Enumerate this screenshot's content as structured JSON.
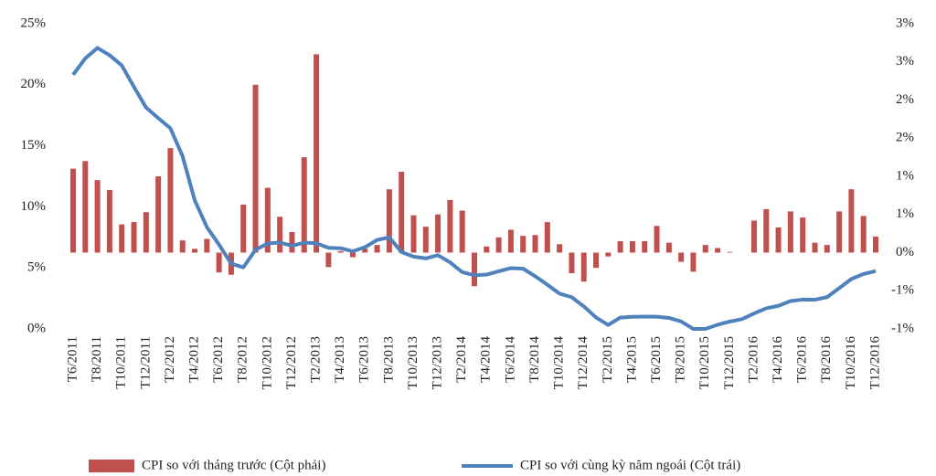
{
  "chart_data": {
    "type": "bar-line",
    "categories": [
      "T6/2011",
      null,
      "T8/2011",
      null,
      "T10/2011",
      null,
      "T12/2011",
      null,
      "T2/2012",
      null,
      "T4/2012",
      null,
      "T6/2012",
      null,
      "T8/2012",
      null,
      "T10/2012",
      null,
      "T12/2012",
      null,
      "T2/2013",
      null,
      "T4/2013",
      null,
      "T6/2013",
      null,
      "T8/2013",
      null,
      "T10/2013",
      null,
      "T12/2013",
      null,
      "T2/2014",
      null,
      "T4/2014",
      null,
      "T6/2014",
      null,
      "T8/2014",
      null,
      "T10/2014",
      null,
      "T12/2014",
      null,
      "T2/2015",
      null,
      "T4/2015",
      null,
      "T6/2015",
      null,
      "T8/2015",
      null,
      "T10/2015",
      null,
      "T12/2015",
      null,
      "T2/2016",
      null,
      "T4/2016",
      null,
      "T6/2016",
      null,
      "T8/2016",
      null,
      "T10/2016",
      null,
      "T12/2016"
    ],
    "series": [
      {
        "name": "CPI so với tháng trước (Cột phải)",
        "type": "bar",
        "axis": "y2",
        "color": "#c0504d",
        "values": [
          1.1,
          1.2,
          0.95,
          0.82,
          0.37,
          0.4,
          0.53,
          1.0,
          1.37,
          0.16,
          0.05,
          0.18,
          -0.26,
          -0.29,
          0.63,
          2.2,
          0.85,
          0.47,
          0.27,
          1.25,
          2.6,
          -0.19,
          0.02,
          -0.06,
          0.05,
          0.1,
          0.83,
          1.06,
          0.49,
          0.34,
          0.5,
          0.69,
          0.55,
          -0.44,
          0.08,
          0.2,
          0.3,
          0.22,
          0.23,
          0.4,
          0.11,
          -0.27,
          -0.38,
          -0.2,
          -0.05,
          0.15,
          0.15,
          0.15,
          0.35,
          0.13,
          -0.12,
          -0.25,
          0.1,
          0.06,
          0.01,
          0.0,
          0.42,
          0.57,
          0.33,
          0.54,
          0.46,
          0.13,
          0.1,
          0.54,
          0.83,
          0.48,
          0.21
        ]
      },
      {
        "name": "CPI so với cùng kỳ năm ngoái (Cột trái)",
        "type": "line",
        "axis": "y",
        "color": "#4f81bd",
        "values": [
          20.82,
          22.16,
          23.02,
          22.42,
          21.59,
          19.83,
          18.13,
          17.27,
          16.44,
          14.15,
          10.54,
          8.34,
          6.9,
          5.35,
          5.04,
          6.48,
          7.0,
          7.08,
          6.81,
          7.07,
          7.02,
          6.64,
          6.61,
          6.36,
          6.69,
          7.29,
          7.5,
          6.3,
          5.92,
          5.78,
          6.04,
          5.45,
          4.65,
          4.39,
          4.45,
          4.72,
          4.98,
          4.94,
          4.31,
          3.62,
          2.89,
          2.6,
          1.84,
          0.94,
          0.32,
          0.93,
          0.99,
          1.01,
          1.0,
          0.9,
          0.61,
          0.0,
          0.0,
          0.34,
          0.6,
          0.8,
          1.27,
          1.69,
          1.89,
          2.28,
          2.4,
          2.39,
          2.6,
          3.34,
          4.09,
          4.5,
          4.74
        ]
      }
    ],
    "ylim": [
      0,
      25
    ],
    "yticks": [
      {
        "value": 0,
        "label": "0%"
      },
      {
        "value": 5,
        "label": "5%"
      },
      {
        "value": 10,
        "label": "10%"
      },
      {
        "value": 15,
        "label": "15%"
      },
      {
        "value": 20,
        "label": "20%"
      },
      {
        "value": 25,
        "label": "25%"
      }
    ],
    "y2lim": [
      -1,
      3
    ],
    "y2ticks": [
      {
        "value": -1,
        "label": "-1%"
      },
      {
        "value": -0.5,
        "label": "-1%"
      },
      {
        "value": 0,
        "label": "0%"
      },
      {
        "value": 0.5,
        "label": "1%"
      },
      {
        "value": 1,
        "label": "1%"
      },
      {
        "value": 1.5,
        "label": "2%"
      },
      {
        "value": 2,
        "label": "2%"
      },
      {
        "value": 2.5,
        "label": "3%"
      },
      {
        "value": 3,
        "label": "3%"
      }
    ],
    "legend": "bottom"
  }
}
